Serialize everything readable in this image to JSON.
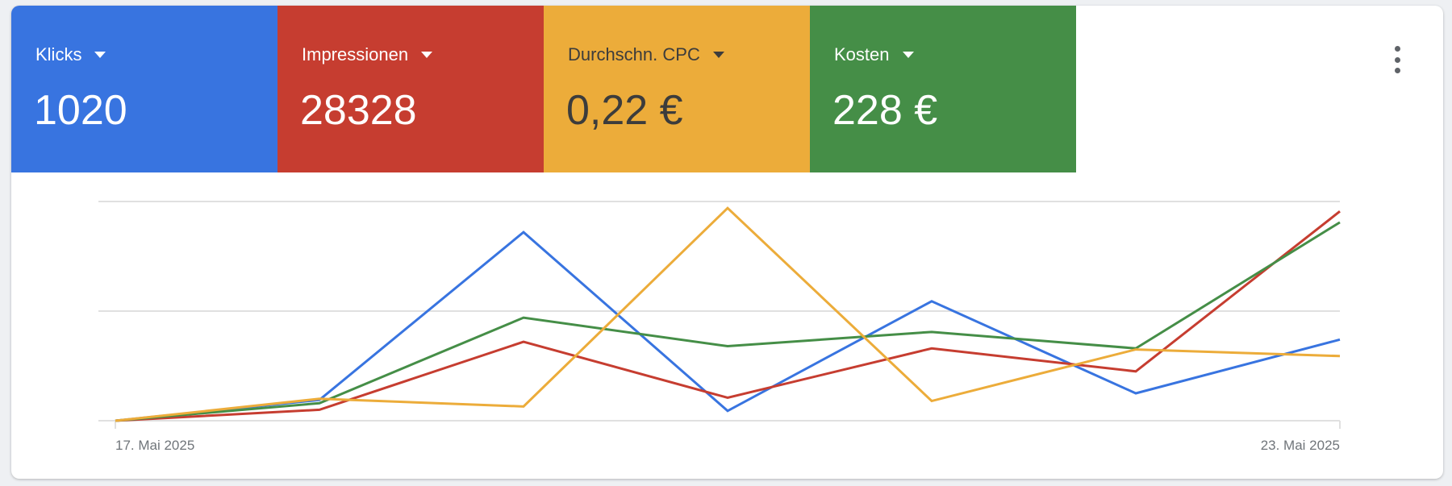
{
  "metrics": [
    {
      "label": "Klicks",
      "value": "1020",
      "color": "#3874e0",
      "text_color": "#ffffff"
    },
    {
      "label": "Impressionen",
      "value": "28328",
      "color": "#c63d30",
      "text_color": "#ffffff"
    },
    {
      "label": "Durchschn. CPC",
      "value": "0,22 €",
      "color": "#ecac3a",
      "text_color": "#3c3c3c"
    },
    {
      "label": "Kosten",
      "value": "228 €",
      "color": "#458e47",
      "text_color": "#ffffff"
    }
  ],
  "menu_icon": "more-vert-icon",
  "chart_data": {
    "type": "line",
    "x_tick_labels": [
      "17. Mai 2025",
      "23. Mai 2025"
    ],
    "ylim": [
      0,
      2
    ],
    "grid": true,
    "y_scale_note_visible": false,
    "series": [
      {
        "name": "Klicks",
        "color": "#3874e0",
        "values": [
          0,
          0.19,
          1.72,
          0.09,
          1.09,
          0.25,
          0.74
        ]
      },
      {
        "name": "Impressionen",
        "color": "#c63d30",
        "values": [
          0,
          0.1,
          0.72,
          0.21,
          0.66,
          0.45,
          1.91
        ]
      },
      {
        "name": "Kosten",
        "color": "#458e47",
        "values": [
          0,
          0.16,
          0.94,
          0.68,
          0.81,
          0.66,
          1.81
        ]
      },
      {
        "name": "Durchschn. CPC",
        "color": "#ecac3a",
        "values": [
          0,
          0.2,
          0.13,
          1.94,
          0.18,
          0.65,
          0.59
        ]
      }
    ]
  }
}
